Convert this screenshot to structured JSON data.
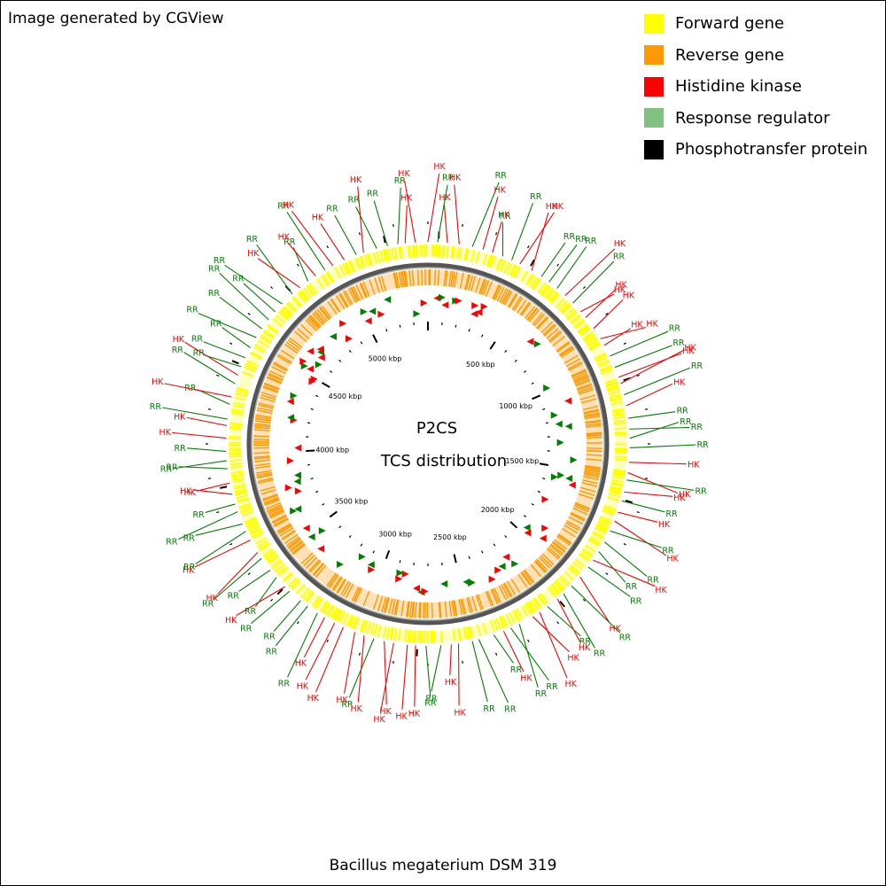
{
  "credit": "Image generated by CGView",
  "legend": [
    {
      "label": "Forward gene",
      "color": "#ffff00"
    },
    {
      "label": "Reverse gene",
      "color": "#ff9900"
    },
    {
      "label": "Histidine kinase",
      "color": "#ff0000"
    },
    {
      "label": "Response regulator",
      "color": "#80c080"
    },
    {
      "label": "Phosphotransfer protein",
      "color": "#000000"
    }
  ],
  "center": {
    "line1": "P2CS",
    "line2": "TCS distribution"
  },
  "footer_title": "Bacillus megaterium DSM 319",
  "scale_labels": [
    "500 kbp",
    "1000 kbp",
    "1500 kbp",
    "2000 kbp",
    "2500 kbp",
    "3000 kbp",
    "3500 kbp",
    "4000 kbp",
    "4500 kbp",
    "5000 kbp"
  ],
  "callout_labels": {
    "hk": "HK",
    "rr": "RR"
  }
}
